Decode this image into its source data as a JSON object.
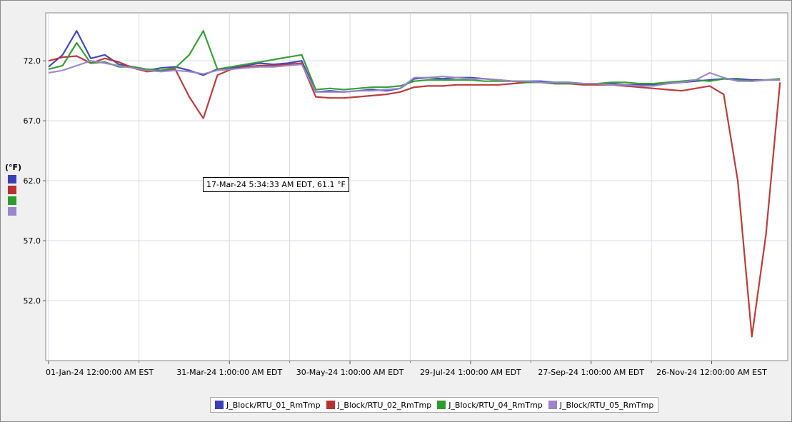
{
  "chart_data": {
    "type": "line",
    "ylabel": "(°F)",
    "ylim": [
      47.0,
      76.0
    ],
    "y_ticks": [
      52.0,
      57.0,
      62.0,
      67.0,
      72.0
    ],
    "y_tick_labels": [
      "52.0",
      "57.0",
      "62.0",
      "67.0",
      "72.0"
    ],
    "x_tick_labels": [
      "01-Jan-24 12:00:00 AM EST",
      "31-Mar-24 1:00:00 AM EDT",
      "30-May-24 1:00:00 AM EDT",
      "29-Jul-24 1:00:00 AM EDT",
      "27-Sep-24 1:00:00 AM EDT",
      "26-Nov-24 12:00:00 AM EST"
    ],
    "x_ticks": [
      "2024-01-01",
      "2024-03-31",
      "2024-05-30",
      "2024-07-29",
      "2024-09-27",
      "2024-11-26"
    ],
    "xlim": [
      "2024-01-01",
      "2024-12-31"
    ],
    "grid": true,
    "legend_position": "bottom-center",
    "tooltip": "17-Mar-24 5:34:33 AM EDT, 61.1 °F",
    "series": [
      {
        "name": "J_Block/RTU_01_RmTmp",
        "color": "#3a3fb8",
        "x": [
          "2024-01-01",
          "2024-01-08",
          "2024-01-15",
          "2024-01-22",
          "2024-01-29",
          "2024-02-05",
          "2024-02-12",
          "2024-02-19",
          "2024-02-26",
          "2024-03-04",
          "2024-03-11",
          "2024-03-18",
          "2024-03-25",
          "2024-04-01",
          "2024-04-08",
          "2024-04-15",
          "2024-04-22",
          "2024-04-29",
          "2024-05-06",
          "2024-05-13",
          "2024-05-20",
          "2024-05-27",
          "2024-06-03",
          "2024-06-10",
          "2024-06-17",
          "2024-06-24",
          "2024-07-01",
          "2024-07-08",
          "2024-07-15",
          "2024-07-22",
          "2024-07-29",
          "2024-08-05",
          "2024-08-12",
          "2024-08-19",
          "2024-08-26",
          "2024-09-02",
          "2024-09-09",
          "2024-09-16",
          "2024-09-23",
          "2024-09-30",
          "2024-10-07",
          "2024-10-14",
          "2024-10-21",
          "2024-10-28",
          "2024-11-04",
          "2024-11-11",
          "2024-11-18",
          "2024-11-25",
          "2024-12-02",
          "2024-12-09",
          "2024-12-16",
          "2024-12-23",
          "2024-12-30"
        ],
        "y": [
          71.5,
          72.5,
          74.5,
          72.2,
          72.5,
          71.7,
          71.5,
          71.2,
          71.4,
          71.5,
          71.2,
          70.8,
          71.3,
          71.4,
          71.6,
          71.8,
          71.7,
          71.8,
          72.0,
          69.4,
          69.5,
          69.4,
          69.5,
          69.6,
          69.5,
          69.7,
          70.5,
          70.6,
          70.5,
          70.6,
          70.6,
          70.5,
          70.4,
          70.3,
          70.3,
          70.3,
          70.2,
          70.2,
          70.1,
          70.1,
          70.1,
          70.0,
          70.0,
          70.0,
          70.1,
          70.2,
          70.3,
          70.4,
          70.5,
          70.5,
          70.4,
          70.4,
          70.4
        ]
      },
      {
        "name": "J_Block/RTU_02_RmTmp",
        "color": "#b83232",
        "x": [
          "2024-01-01",
          "2024-01-08",
          "2024-01-15",
          "2024-01-22",
          "2024-01-29",
          "2024-02-05",
          "2024-02-12",
          "2024-02-19",
          "2024-02-26",
          "2024-03-04",
          "2024-03-11",
          "2024-03-18",
          "2024-03-25",
          "2024-04-01",
          "2024-04-08",
          "2024-04-15",
          "2024-04-22",
          "2024-04-29",
          "2024-05-06",
          "2024-05-13",
          "2024-05-20",
          "2024-05-27",
          "2024-06-03",
          "2024-06-10",
          "2024-06-17",
          "2024-06-24",
          "2024-07-01",
          "2024-07-08",
          "2024-07-15",
          "2024-07-22",
          "2024-07-29",
          "2024-08-05",
          "2024-08-12",
          "2024-08-19",
          "2024-08-26",
          "2024-09-02",
          "2024-09-09",
          "2024-09-16",
          "2024-09-23",
          "2024-09-30",
          "2024-10-07",
          "2024-10-14",
          "2024-10-21",
          "2024-10-28",
          "2024-11-04",
          "2024-11-11",
          "2024-11-18",
          "2024-11-25",
          "2024-12-02",
          "2024-12-09",
          "2024-12-16",
          "2024-12-23",
          "2024-12-30"
        ],
        "y": [
          72.0,
          72.3,
          72.4,
          71.8,
          72.2,
          71.9,
          71.4,
          71.1,
          71.2,
          71.3,
          69.0,
          67.2,
          70.8,
          71.3,
          71.5,
          71.6,
          71.6,
          71.7,
          71.8,
          69.0,
          68.9,
          68.9,
          69.0,
          69.1,
          69.2,
          69.4,
          69.8,
          69.9,
          69.9,
          70.0,
          70.0,
          70.0,
          70.0,
          70.1,
          70.2,
          70.2,
          70.1,
          70.1,
          70.0,
          70.0,
          70.0,
          69.9,
          69.8,
          69.7,
          69.6,
          69.5,
          69.7,
          69.9,
          69.2,
          62.0,
          49.0,
          57.5,
          70.2
        ]
      },
      {
        "name": "J_Block/RTU_04_RmTmp",
        "color": "#2e9b2e",
        "x": [
          "2024-01-01",
          "2024-01-08",
          "2024-01-15",
          "2024-01-22",
          "2024-01-29",
          "2024-02-05",
          "2024-02-12",
          "2024-02-19",
          "2024-02-26",
          "2024-03-04",
          "2024-03-11",
          "2024-03-18",
          "2024-03-25",
          "2024-04-01",
          "2024-04-08",
          "2024-04-15",
          "2024-04-22",
          "2024-04-29",
          "2024-05-06",
          "2024-05-13",
          "2024-05-20",
          "2024-05-27",
          "2024-06-03",
          "2024-06-10",
          "2024-06-17",
          "2024-06-24",
          "2024-07-01",
          "2024-07-08",
          "2024-07-15",
          "2024-07-22",
          "2024-07-29",
          "2024-08-05",
          "2024-08-12",
          "2024-08-19",
          "2024-08-26",
          "2024-09-02",
          "2024-09-09",
          "2024-09-16",
          "2024-09-23",
          "2024-09-30",
          "2024-10-07",
          "2024-10-14",
          "2024-10-21",
          "2024-10-28",
          "2024-11-04",
          "2024-11-11",
          "2024-11-18",
          "2024-11-25",
          "2024-12-02",
          "2024-12-09",
          "2024-12-16",
          "2024-12-23",
          "2024-12-30"
        ],
        "y": [
          71.3,
          71.6,
          73.5,
          71.8,
          71.9,
          71.5,
          71.5,
          71.3,
          71.2,
          71.4,
          72.5,
          74.5,
          71.3,
          71.5,
          71.7,
          71.9,
          72.1,
          72.3,
          72.5,
          69.6,
          69.7,
          69.6,
          69.7,
          69.8,
          69.8,
          69.9,
          70.3,
          70.4,
          70.4,
          70.4,
          70.4,
          70.3,
          70.3,
          70.3,
          70.2,
          70.2,
          70.1,
          70.1,
          70.1,
          70.1,
          70.2,
          70.2,
          70.1,
          70.1,
          70.2,
          70.3,
          70.4,
          70.3,
          70.5,
          70.4,
          70.3,
          70.4,
          70.5
        ]
      },
      {
        "name": "J_Block/RTU_05_RmTmp",
        "color": "#9a86c8",
        "x": [
          "2024-01-01",
          "2024-01-08",
          "2024-01-15",
          "2024-01-22",
          "2024-01-29",
          "2024-02-05",
          "2024-02-12",
          "2024-02-19",
          "2024-02-26",
          "2024-03-04",
          "2024-03-11",
          "2024-03-18",
          "2024-03-25",
          "2024-04-01",
          "2024-04-08",
          "2024-04-15",
          "2024-04-22",
          "2024-04-29",
          "2024-05-06",
          "2024-05-13",
          "2024-05-20",
          "2024-05-27",
          "2024-06-03",
          "2024-06-10",
          "2024-06-17",
          "2024-06-24",
          "2024-07-01",
          "2024-07-08",
          "2024-07-15",
          "2024-07-22",
          "2024-07-29",
          "2024-08-05",
          "2024-08-12",
          "2024-08-19",
          "2024-08-26",
          "2024-09-02",
          "2024-09-09",
          "2024-09-16",
          "2024-09-23",
          "2024-09-30",
          "2024-10-07",
          "2024-10-14",
          "2024-10-21",
          "2024-10-28",
          "2024-11-04",
          "2024-11-11",
          "2024-11-18",
          "2024-11-25",
          "2024-12-02",
          "2024-12-09",
          "2024-12-16",
          "2024-12-23",
          "2024-12-30"
        ],
        "y": [
          71.0,
          71.2,
          71.6,
          72.0,
          71.8,
          71.6,
          71.4,
          71.2,
          71.1,
          71.2,
          71.1,
          70.9,
          71.2,
          71.3,
          71.4,
          71.5,
          71.5,
          71.6,
          71.7,
          69.4,
          69.4,
          69.4,
          69.5,
          69.5,
          69.6,
          69.7,
          70.6,
          70.6,
          70.7,
          70.6,
          70.5,
          70.5,
          70.4,
          70.3,
          70.3,
          70.2,
          70.2,
          70.2,
          70.1,
          70.1,
          70.0,
          70.0,
          69.9,
          69.9,
          70.1,
          70.2,
          70.4,
          71.0,
          70.6,
          70.3,
          70.3,
          70.4,
          70.4
        ]
      }
    ]
  }
}
